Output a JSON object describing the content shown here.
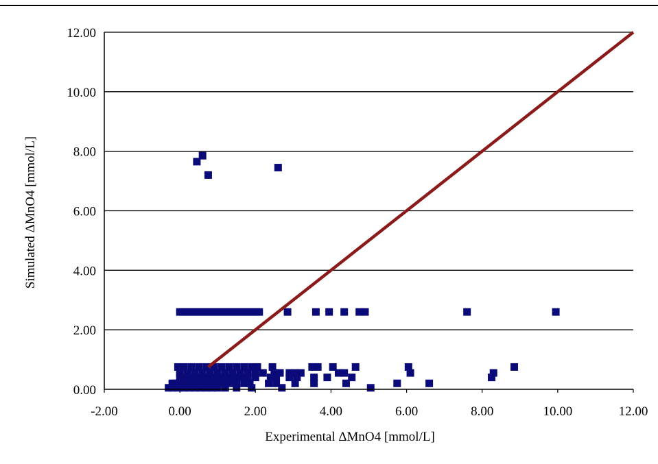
{
  "chart_data": {
    "type": "scatter",
    "title": "",
    "xlabel": "Experimental ΔMnO4 [mmol/L]",
    "ylabel": "Simulated ΔMnO4 [mmol/L]",
    "xlim": [
      -2,
      12
    ],
    "ylim": [
      0,
      12
    ],
    "x_ticks": [
      "-2.00",
      "0.00",
      "2.00",
      "4.00",
      "6.00",
      "8.00",
      "10.00",
      "12.00"
    ],
    "y_ticks": [
      "0.00",
      "2.00",
      "4.00",
      "6.00",
      "8.00",
      "10.00",
      "12.00"
    ],
    "grid": "horizontal",
    "legend": "none",
    "colors": {
      "points": "#0a0a78",
      "line": "#8b1a1a",
      "grid": "#000000"
    },
    "series": [
      {
        "type": "scatter",
        "x": [
          0.45,
          0.6,
          0.75,
          2.6,
          0.0,
          0.1,
          0.2,
          0.3,
          0.4,
          0.5,
          0.6,
          0.7,
          0.8,
          0.9,
          1.0,
          1.1,
          1.2,
          1.3,
          1.4,
          1.5,
          1.6,
          1.7,
          1.8,
          1.9,
          2.0,
          2.1,
          2.85,
          3.6,
          3.95,
          4.35,
          4.75,
          4.9,
          7.6,
          9.95,
          -0.05,
          0.1,
          0.3,
          0.5,
          0.7,
          0.9,
          1.1,
          1.3,
          1.5,
          1.7,
          1.9,
          2.05,
          2.45,
          3.5,
          3.65,
          4.05,
          4.65,
          6.05,
          8.85,
          0.0,
          0.2,
          0.4,
          0.6,
          0.8,
          1.0,
          1.2,
          1.4,
          1.6,
          1.8,
          2.0,
          2.2,
          2.5,
          2.65,
          2.9,
          3.05,
          3.2,
          4.2,
          4.35,
          6.1,
          8.3,
          0.0,
          0.15,
          0.3,
          0.45,
          0.6,
          0.75,
          0.9,
          1.05,
          1.2,
          1.35,
          1.5,
          1.65,
          1.8,
          2.0,
          2.4,
          2.55,
          2.9,
          3.1,
          3.55,
          3.9,
          4.55,
          8.25,
          -0.2,
          -0.1,
          0.0,
          0.1,
          0.2,
          0.3,
          0.4,
          0.5,
          0.6,
          0.7,
          0.8,
          0.9,
          1.0,
          1.1,
          1.2,
          1.35,
          1.5,
          1.7,
          1.85,
          2.35,
          2.55,
          3.05,
          3.55,
          4.4,
          5.75,
          6.6,
          -0.3,
          -0.2,
          -0.05,
          0.1,
          0.25,
          0.4,
          0.55,
          0.7,
          0.85,
          1.0,
          1.2,
          1.5,
          1.9,
          2.7,
          5.05
        ],
        "y": [
          7.65,
          7.85,
          7.2,
          7.45,
          2.6,
          2.6,
          2.6,
          2.6,
          2.6,
          2.6,
          2.6,
          2.6,
          2.6,
          2.6,
          2.6,
          2.6,
          2.6,
          2.6,
          2.6,
          2.6,
          2.6,
          2.6,
          2.6,
          2.6,
          2.6,
          2.6,
          2.6,
          2.6,
          2.6,
          2.6,
          2.6,
          2.6,
          2.6,
          2.6,
          0.75,
          0.75,
          0.75,
          0.75,
          0.75,
          0.75,
          0.75,
          0.75,
          0.75,
          0.75,
          0.75,
          0.75,
          0.75,
          0.75,
          0.75,
          0.75,
          0.75,
          0.75,
          0.75,
          0.55,
          0.55,
          0.55,
          0.55,
          0.55,
          0.55,
          0.55,
          0.55,
          0.55,
          0.55,
          0.55,
          0.55,
          0.55,
          0.55,
          0.55,
          0.55,
          0.55,
          0.55,
          0.55,
          0.55,
          0.55,
          0.4,
          0.4,
          0.4,
          0.4,
          0.4,
          0.4,
          0.4,
          0.4,
          0.4,
          0.4,
          0.4,
          0.4,
          0.4,
          0.4,
          0.4,
          0.4,
          0.4,
          0.4,
          0.4,
          0.4,
          0.4,
          0.4,
          0.2,
          0.2,
          0.2,
          0.2,
          0.2,
          0.2,
          0.2,
          0.2,
          0.2,
          0.2,
          0.2,
          0.2,
          0.2,
          0.2,
          0.2,
          0.2,
          0.2,
          0.2,
          0.2,
          0.2,
          0.2,
          0.2,
          0.2,
          0.2,
          0.2,
          0.2,
          0.05,
          0.05,
          0.05,
          0.05,
          0.05,
          0.05,
          0.05,
          0.05,
          0.05,
          0.05,
          0.05,
          0.05,
          0.05,
          0.05,
          0.05
        ]
      },
      {
        "type": "line",
        "x": [
          0.75,
          12
        ],
        "y": [
          0.75,
          12
        ]
      }
    ]
  }
}
